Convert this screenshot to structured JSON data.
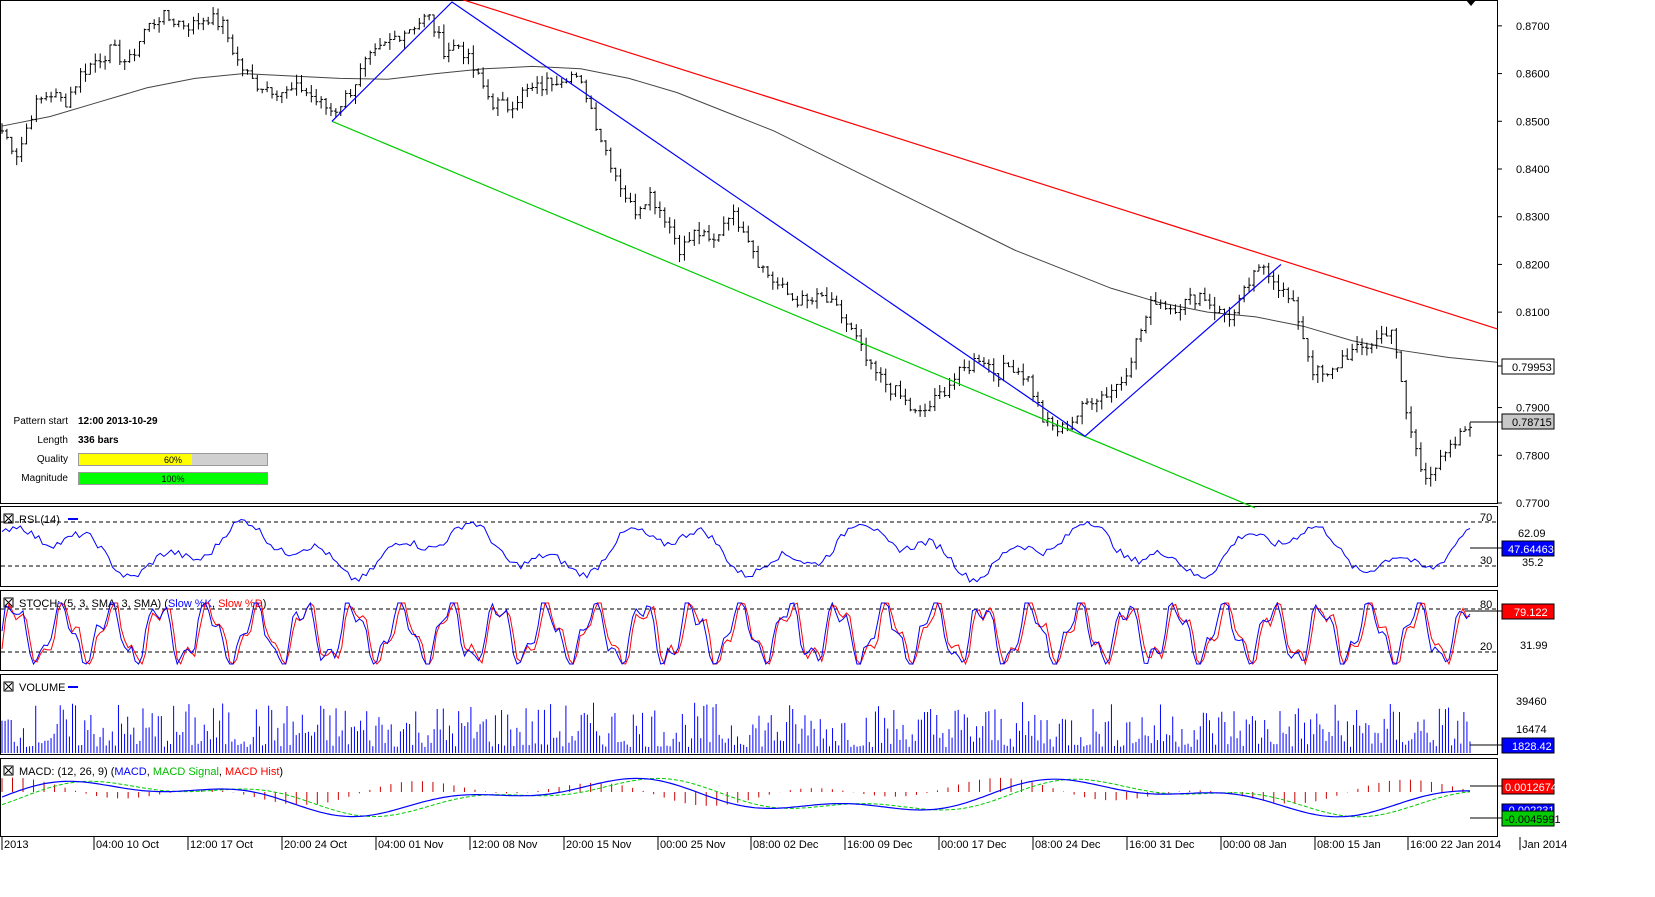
{
  "chart_data": {
    "type": "candlestick",
    "ylim": [
      0.77,
      0.875
    ],
    "y_ticks": [
      "0.8700",
      "0.8600",
      "0.8500",
      "0.8400",
      "0.8300",
      "0.8200",
      "0.8100",
      "0.7900",
      "0.7800",
      "0.7700"
    ],
    "x_ticks": [
      "2013",
      "04:00 10 Oct",
      "12:00 17 Oct",
      "20:00 24 Oct",
      "04:00 01 Nov",
      "12:00 08 Nov",
      "20:00 15 Nov",
      "00:00 25 Nov",
      "08:00 02 Dec",
      "16:00 09 Dec",
      "00:00 17 Dec",
      "08:00 24 Dec",
      "16:00 31 Dec",
      "00:00 08 Jan",
      "08:00 15 Jan",
      "16:00 22 Jan 2014",
      "Jan 2014"
    ],
    "close_series": [
      0.848,
      0.843,
      0.853,
      0.856,
      0.854,
      0.86,
      0.863,
      0.865,
      0.862,
      0.869,
      0.872,
      0.871,
      0.87,
      0.872,
      0.87,
      0.862,
      0.858,
      0.857,
      0.856,
      0.857,
      0.854,
      0.852,
      0.856,
      0.862,
      0.865,
      0.868,
      0.87,
      0.872,
      0.865,
      0.866,
      0.86,
      0.854,
      0.853,
      0.856,
      0.857,
      0.859,
      0.86,
      0.856,
      0.846,
      0.838,
      0.831,
      0.835,
      0.83,
      0.823,
      0.827,
      0.824,
      0.831,
      0.828,
      0.82,
      0.816,
      0.813,
      0.812,
      0.813,
      0.81,
      0.805,
      0.798,
      0.795,
      0.792,
      0.788,
      0.791,
      0.795,
      0.798,
      0.801,
      0.797,
      0.799,
      0.796,
      0.787,
      0.785,
      0.788,
      0.792,
      0.793,
      0.796,
      0.805,
      0.813,
      0.811,
      0.812,
      0.814,
      0.81,
      0.809,
      0.816,
      0.82,
      0.815,
      0.81,
      0.798,
      0.796,
      0.801,
      0.802,
      0.804,
      0.807,
      0.788,
      0.776,
      0.778,
      0.782,
      0.7871
    ],
    "moving_average": [
      0.849,
      0.851,
      0.854,
      0.857,
      0.859,
      0.86,
      0.8595,
      0.859,
      0.8588,
      0.86,
      0.861,
      0.8615,
      0.861,
      0.859,
      0.856,
      0.852,
      0.848,
      0.843,
      0.838,
      0.833,
      0.828,
      0.823,
      0.819,
      0.815,
      0.812,
      0.81,
      0.809,
      0.807,
      0.804,
      0.802,
      0.8005,
      0.7995
    ],
    "trendlines": {
      "resistance": {
        "color": "#ff0000",
        "points": [
          [
            "2013-10-29",
            0.88
          ],
          [
            "2014-01-24",
            0.8065
          ]
        ]
      },
      "support": {
        "color": "#00cc00",
        "points": [
          [
            "2013-10-29",
            0.85
          ],
          [
            "2014-01-06",
            0.769
          ]
        ]
      },
      "zigzag": {
        "color": "#0000ff",
        "points": [
          [
            0.85
          ],
          [
            0.875
          ],
          [
            0.784
          ],
          [
            0.82
          ]
        ]
      }
    },
    "price_labels": {
      "ma_value": "0.79953",
      "last_price": "0.78715"
    },
    "colors": {
      "candle": "#000000",
      "ma": "#333333",
      "resistance": "#ff0000",
      "support": "#00cc00",
      "pattern": "#0000ff"
    }
  },
  "pattern_info": {
    "pattern_start_label": "Pattern start",
    "pattern_start_value": "12:00 2013-10-29",
    "length_label": "Length",
    "length_value": "336 bars",
    "quality_label": "Quality",
    "quality_value": "60%",
    "quality_fraction": 0.6,
    "magnitude_label": "Magnitude",
    "magnitude_value": "100%",
    "magnitude_fraction": 1.0
  },
  "panels": {
    "rsi": {
      "title": "RSI (14)",
      "level_high": "70",
      "level_low": "30",
      "value_gray": "62.09",
      "value_current": "47.64463",
      "value_low": "35.2"
    },
    "stoch": {
      "title_prefix": "STOCH: (5, 3, SMA, 3, SMA) (",
      "slow_k": "Slow %K",
      "sep": ", ",
      "slow_d": "Slow %D",
      "suffix": ")",
      "level_high": "80",
      "level_low": "20",
      "value_gray": "31.99",
      "value_current": "79.122"
    },
    "volume": {
      "title": "VOLUME",
      "value_high": "39460",
      "value_mid": "16474",
      "value_current": "1828.42"
    },
    "macd": {
      "title_prefix": "MACD: (12, 26, 9) (",
      "macd": "MACD",
      "sep1": ", ",
      "signal": "MACD Signal",
      "sep2": ", ",
      "hist": "MACD Hist",
      "suffix": ")",
      "value_hist": "0.0012674",
      "value_macd": "-0.0022317",
      "value_signal": "-0.0045991"
    }
  }
}
